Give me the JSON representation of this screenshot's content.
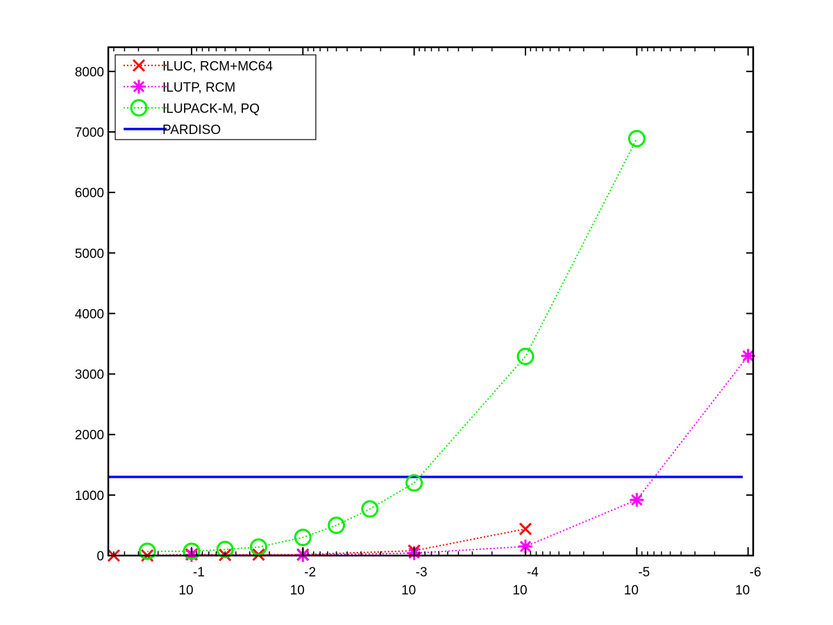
{
  "chart_data": {
    "type": "line",
    "title": "",
    "xlabel": "",
    "ylabel": "",
    "x_scale": "log",
    "x_reversed": true,
    "xlim": [
      0.56,
      9e-07
    ],
    "ylim": [
      0,
      8400
    ],
    "y_ticks": [
      0,
      1000,
      2000,
      3000,
      4000,
      5000,
      6000,
      7000,
      8000
    ],
    "x_ticks": [
      {
        "value": 0.1,
        "base": "10",
        "exp": "-1"
      },
      {
        "value": 0.01,
        "base": "10",
        "exp": "-2"
      },
      {
        "value": 0.001,
        "base": "10",
        "exp": "-3"
      },
      {
        "value": 0.0001,
        "base": "10",
        "exp": "-4"
      },
      {
        "value": 1e-05,
        "base": "10",
        "exp": "-5"
      },
      {
        "value": 1e-06,
        "base": "10",
        "exp": "-6"
      }
    ],
    "legend_position": "top-left",
    "grid": false,
    "series": [
      {
        "name": "ILUC, RCM+MC64",
        "color": "#ff0000",
        "marker": "x",
        "line": "dotted",
        "x": [
          0.5,
          0.25,
          0.1,
          0.05,
          0.025,
          0.01,
          0.001,
          0.0001
        ],
        "y": [
          0,
          0,
          20,
          10,
          15,
          15,
          80,
          440
        ]
      },
      {
        "name": "ILUTP, RCM",
        "color": "#ff00ff",
        "marker": "asterisk",
        "line": "dotted",
        "x": [
          0.1,
          0.01,
          0.001,
          0.0001,
          1e-05,
          1e-06
        ],
        "y": [
          10,
          10,
          40,
          150,
          920,
          3300
        ]
      },
      {
        "name": "ILUPACK-M, PQ",
        "color": "#00ee00",
        "marker": "circle",
        "line": "dotted",
        "x": [
          0.25,
          0.1,
          0.05,
          0.025,
          0.01,
          0.005,
          0.0025,
          0.001,
          0.0001,
          1e-05
        ],
        "y": [
          70,
          70,
          100,
          140,
          300,
          500,
          770,
          1200,
          3290,
          6890
        ]
      },
      {
        "name": "PARDISO",
        "color": "#0000ff",
        "marker": "none",
        "line": "solid",
        "x": [
          0.56,
          9e-07
        ],
        "y": [
          1300,
          1300
        ]
      }
    ]
  }
}
